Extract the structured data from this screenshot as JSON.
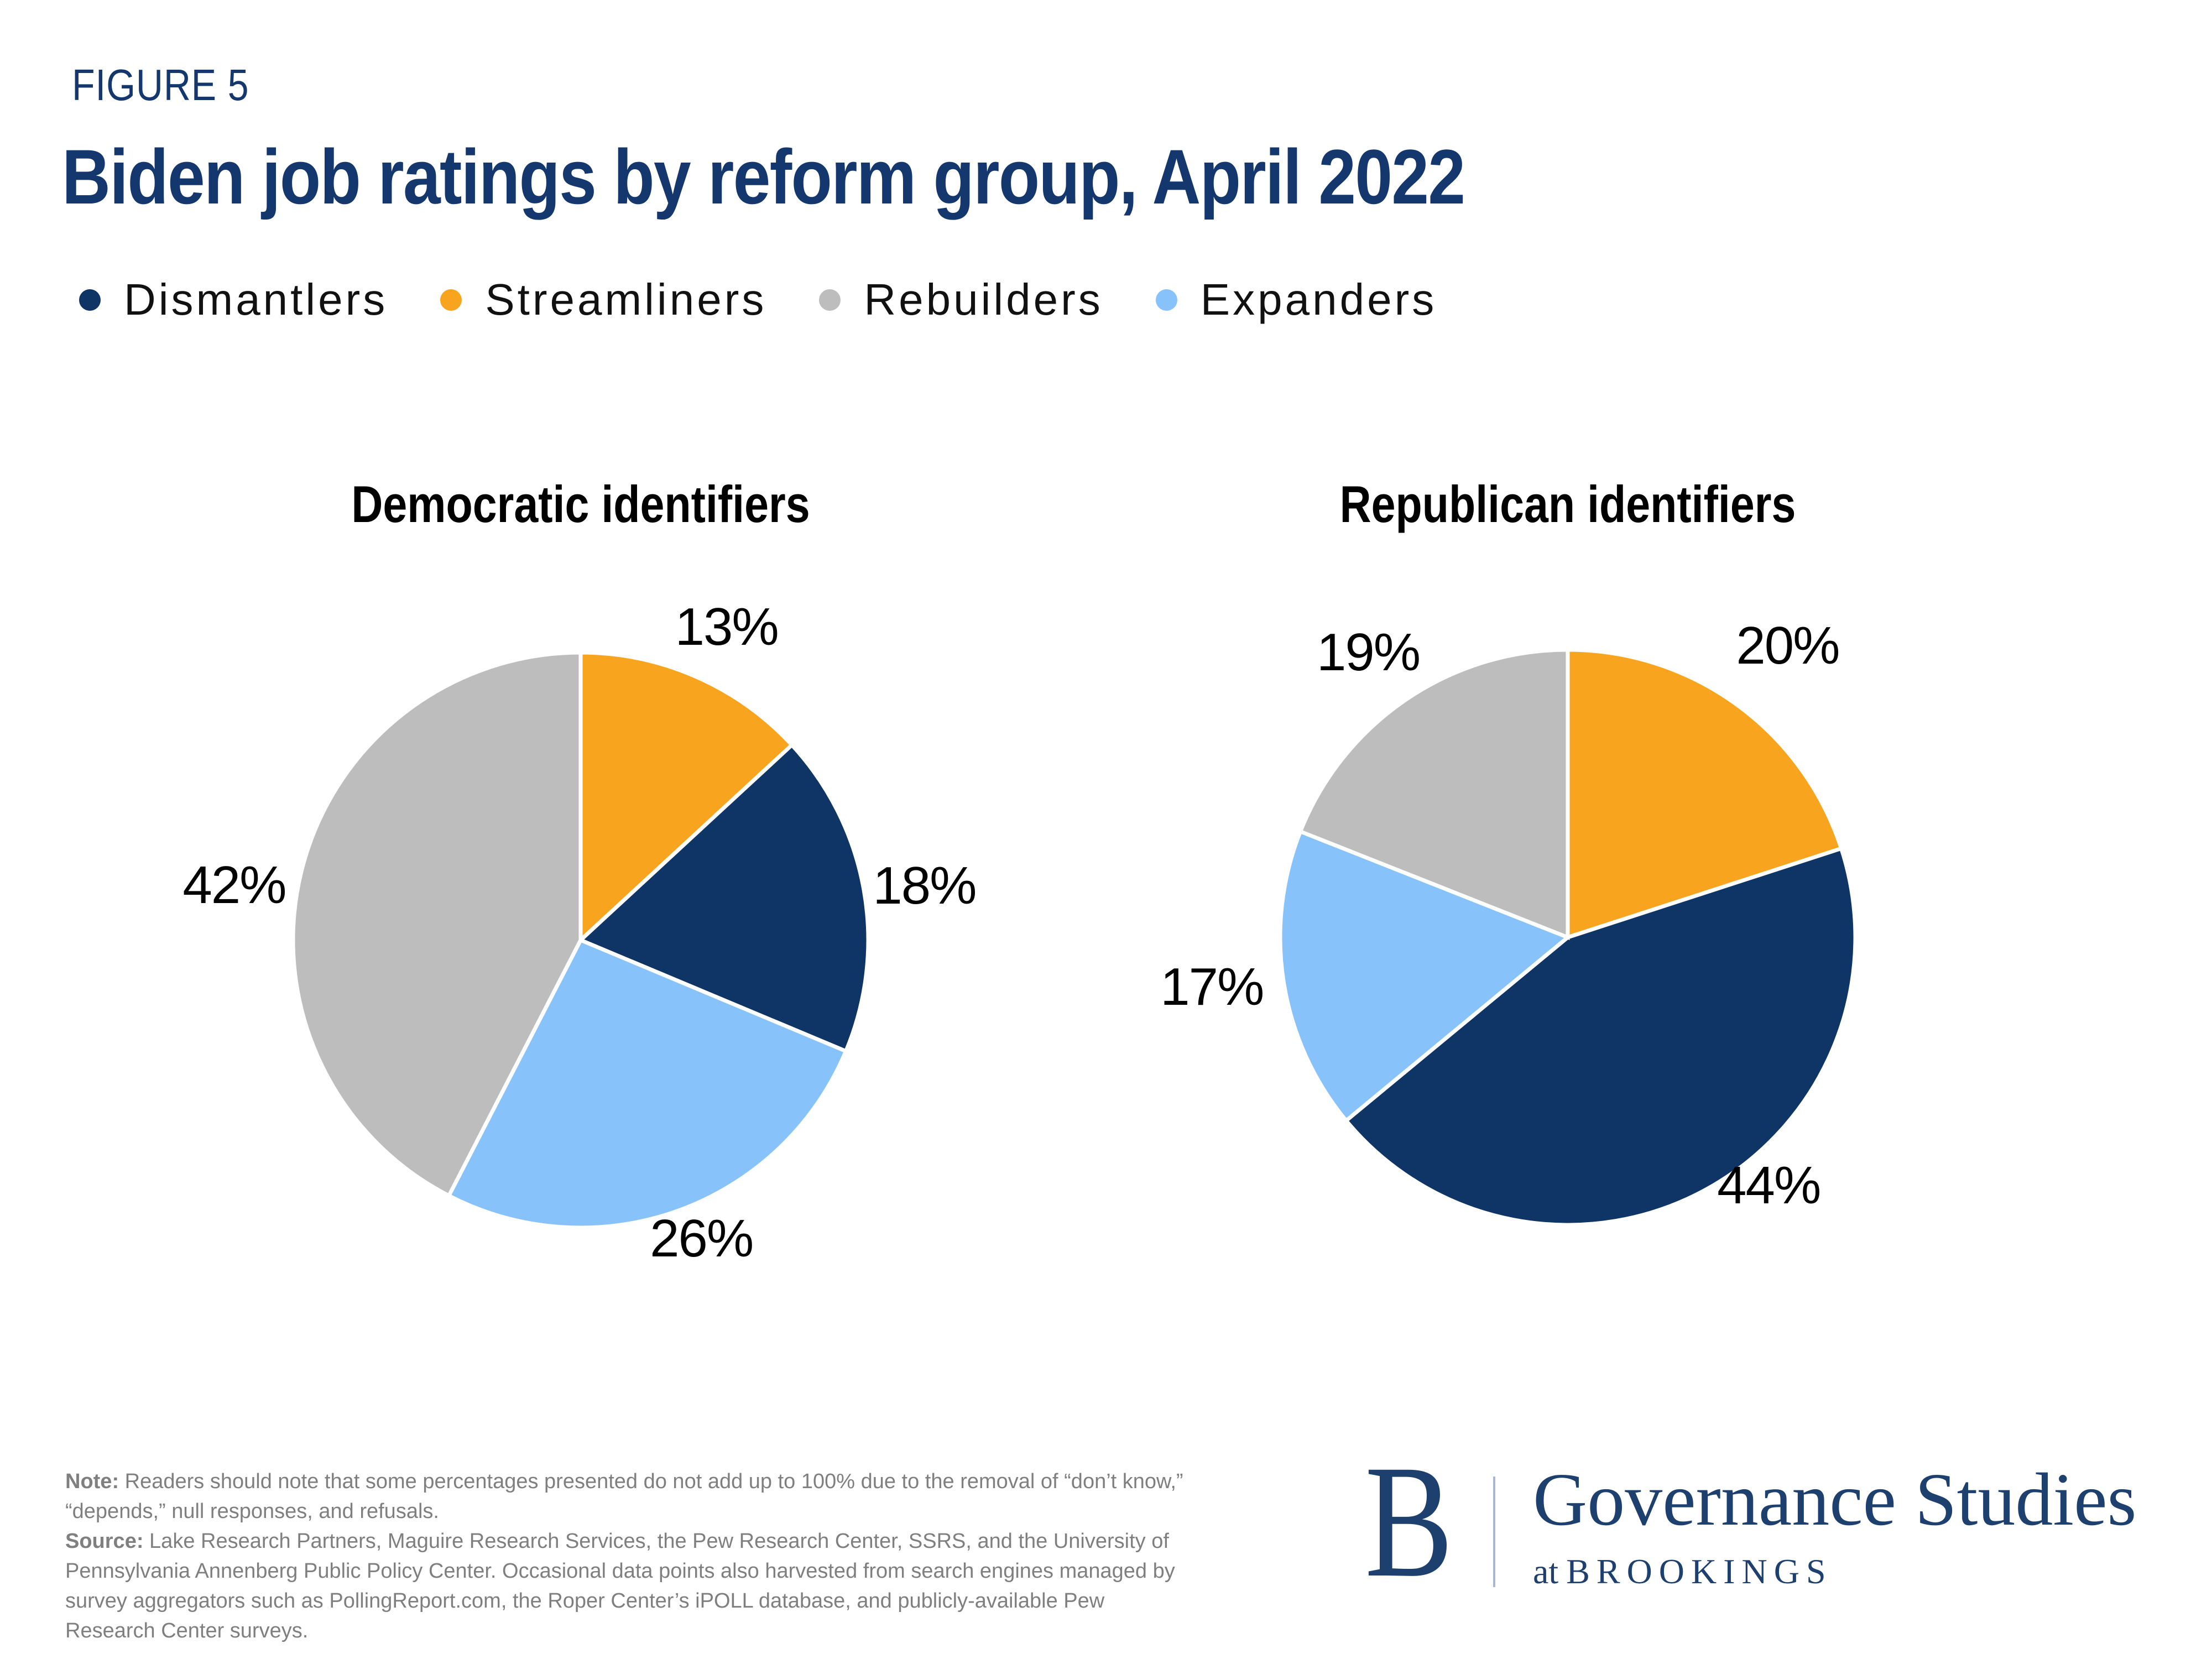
{
  "figure_label": "FIGURE 5",
  "title": "Biden job ratings by reform group, April 2022",
  "colors": {
    "title_navy": "#14386E",
    "navy": "#0E3566",
    "orange": "#F9A41F",
    "gray": "#BDBDBD",
    "light_blue": "#87C3FA",
    "note_gray": "#7F7F7F",
    "logo_navy": "#1E406F",
    "logo_divider": "#A9B7CF",
    "black": "#000000"
  },
  "legend": {
    "items": [
      {
        "label": "Dismantlers",
        "color": "#0E3566"
      },
      {
        "label": "Streamliners",
        "color": "#F9A41F"
      },
      {
        "label": "Rebuilders",
        "color": "#BDBDBD"
      },
      {
        "label": "Expanders",
        "color": "#87C3FA"
      }
    ]
  },
  "chart_data": [
    {
      "type": "pie",
      "title": "Democratic identifiers",
      "start_angle_deg": 0,
      "direction": "clockwise",
      "legend_position": "top",
      "slices": [
        {
          "label": "Streamliners",
          "value": 13,
          "display": "13%",
          "color": "#F9A41F",
          "label_angle_deg": 25,
          "label_r_factor": 1.2
        },
        {
          "label": "Dismantlers",
          "value": 18,
          "display": "18%",
          "color": "#0E3566",
          "label_angle_deg": 81,
          "label_r_factor": 1.21
        },
        {
          "label": "Expanders",
          "value": 26,
          "display": "26%",
          "color": "#87C3FA",
          "label_angle_deg": 158,
          "label_r_factor": 1.12
        },
        {
          "label": "Rebuilders",
          "value": 42,
          "display": "42%",
          "color": "#BDBDBD",
          "label_angle_deg": 279,
          "label_r_factor": 1.22
        }
      ]
    },
    {
      "type": "pie",
      "title": "Republican identifiers",
      "start_angle_deg": 0,
      "direction": "clockwise",
      "legend_position": "top",
      "slices": [
        {
          "label": "Streamliners",
          "value": 20,
          "display": "20%",
          "color": "#F9A41F",
          "label_angle_deg": 37,
          "label_r_factor": 1.27
        },
        {
          "label": "Dismantlers",
          "value": 44,
          "display": "44%",
          "color": "#0E3566",
          "label_angle_deg": 141,
          "label_r_factor": 1.11
        },
        {
          "label": "Expanders",
          "value": 17,
          "display": "17%",
          "color": "#87C3FA",
          "label_angle_deg": 262,
          "label_r_factor": 1.25
        },
        {
          "label": "Rebuilders",
          "value": 19,
          "display": "19%",
          "color": "#BDBDBD",
          "label_angle_deg": 325,
          "label_r_factor": 1.21
        }
      ]
    }
  ],
  "note": {
    "note_label": "Note:",
    "note_text": "Readers should note that some percentages presented do not add up to 100% due to the removal of “don’t know,” “depends,” null responses, and refusals.",
    "source_label": "Source:",
    "source_text": "Lake Research Partners, Maguire Research Services, the Pew Research Center, SSRS, and the University of Pennsylvania Annenberg Public Policy Center. Occasional data points also harvested from search engines managed by survey aggregators such as PollingReport.com, the Roper Center’s iPOLL database, and publicly-available Pew Research Center surveys."
  },
  "logo": {
    "letter": "B",
    "line1": "Governance Studies",
    "line2_prefix": "at",
    "line2": "BROOKINGS"
  }
}
